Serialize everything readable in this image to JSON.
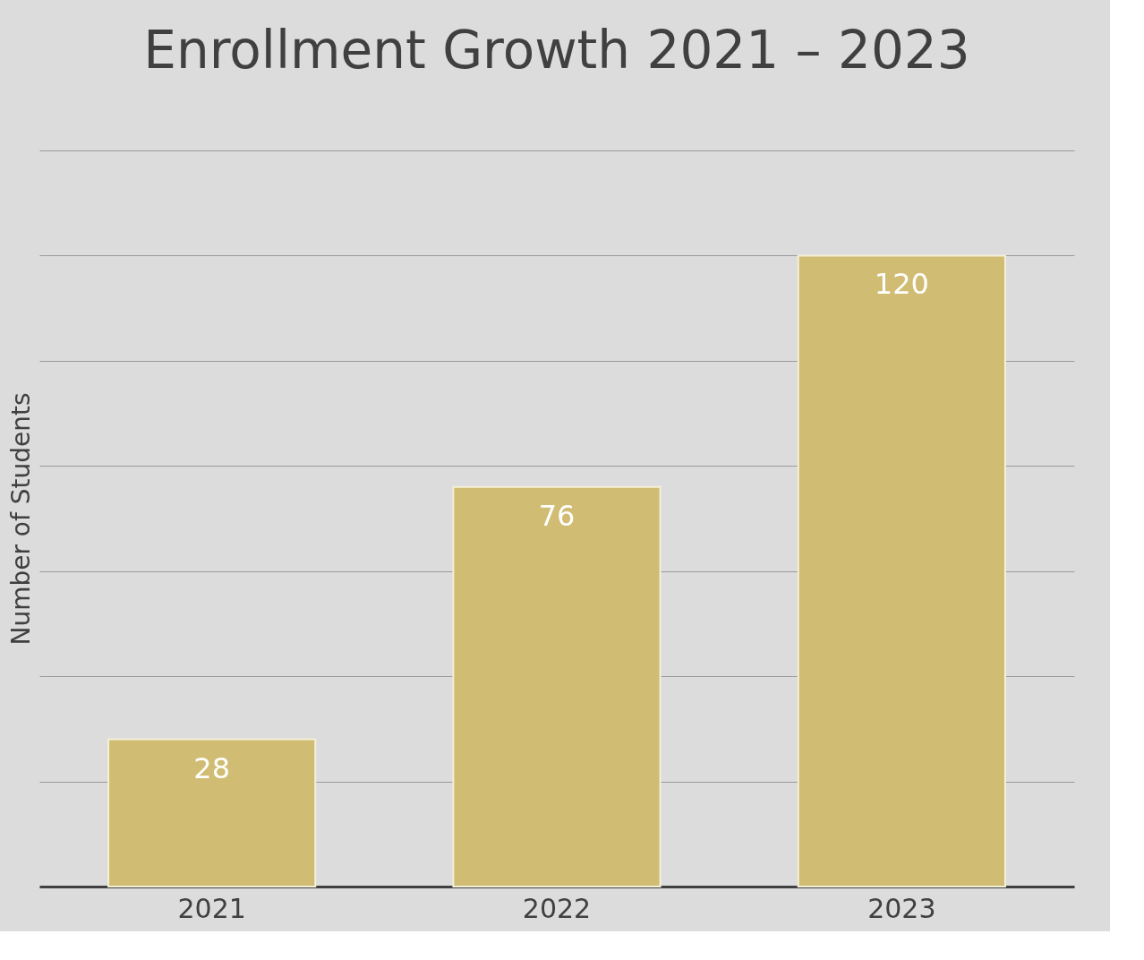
{
  "chart_data": {
    "type": "bar",
    "title": "Enrollment Growth 2021 – 2023",
    "ylabel": "Number of Students",
    "categories": [
      "2021",
      "2022",
      "2023"
    ],
    "values": [
      28,
      76,
      120
    ],
    "color": "#d0bd73",
    "ylim": [
      0,
      140
    ],
    "yticks": [
      {
        "value": 0,
        "label": null
      },
      {
        "value": 20,
        "label": null
      },
      {
        "value": 40,
        "label": null
      },
      {
        "value": 60,
        "label": null
      },
      {
        "value": 80,
        "label": null
      },
      {
        "value": 100,
        "label": null
      },
      {
        "value": 120,
        "label": null
      },
      {
        "value": 140,
        "label": null
      }
    ],
    "grid": "y",
    "data_labels": true,
    "tick_labels": "x"
  }
}
